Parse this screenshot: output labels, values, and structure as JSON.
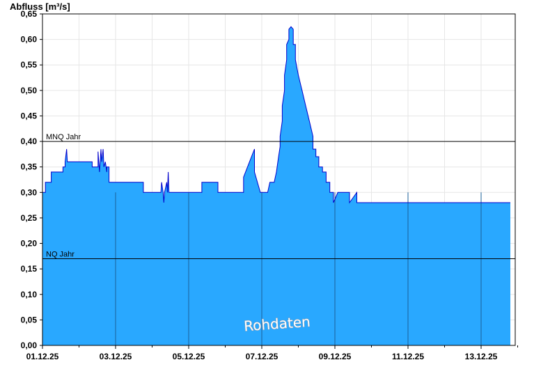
{
  "chart_data": {
    "type": "area",
    "ylabel": "Abfluss [m³/s]",
    "ylim": [
      0,
      0.65
    ],
    "y_ticks": [
      "0,00",
      "0,05",
      "0,10",
      "0,15",
      "0,20",
      "0,25",
      "0,30",
      "0,35",
      "0,40",
      "0,45",
      "0,50",
      "0,55",
      "0,60",
      "0,65"
    ],
    "x_ticks": [
      "01.12.25",
      "03.12.25",
      "05.12.25",
      "07.12.25",
      "09.12.25",
      "11.12.25",
      "13.12.25"
    ],
    "grid": true,
    "reference_lines": [
      {
        "label": "MNQ Jahr",
        "value": 0.4
      },
      {
        "label": "NQ Jahr",
        "value": 0.17
      }
    ],
    "watermark": "Rohdaten",
    "colors": {
      "fill": "#29a8ff",
      "line": "#0000cc",
      "grid": "#e6e6e6"
    },
    "series": [
      {
        "x": [
          0,
          0.08,
          0.08,
          0.24,
          0.24,
          0.56,
          0.56,
          0.62,
          0.62,
          0.66,
          0.68,
          0.68,
          1.36,
          1.36,
          1.52,
          1.52,
          1.56,
          1.6,
          1.62,
          1.66,
          1.68,
          1.72,
          1.76,
          1.76,
          1.82,
          1.82,
          1.88,
          1.88,
          2.76,
          2.76,
          3.24,
          3.26,
          3.3,
          3.32,
          3.34,
          3.4,
          3.42,
          3.44,
          3.46,
          4.0,
          4.0,
          4.36,
          4.36,
          4.8,
          4.8,
          5.04,
          5.06,
          5.1,
          5.14,
          5.16,
          5.2,
          5.2,
          5.5,
          5.5,
          5.8,
          5.8,
          5.96,
          5.96,
          6.04,
          6.1,
          6.16,
          6.22,
          6.28,
          6.34,
          6.4,
          6.46,
          6.5,
          6.5,
          6.56,
          6.56,
          6.62,
          6.62,
          6.68,
          6.68,
          6.74,
          6.74,
          6.8,
          6.8,
          6.86,
          6.86,
          6.92,
          6.92,
          7.0,
          7.1,
          7.2,
          7.3,
          7.4,
          7.4,
          7.48,
          7.48,
          7.56,
          7.56,
          7.66,
          7.66,
          7.76,
          7.76,
          7.86,
          7.86,
          7.96,
          7.96,
          8.08,
          8.08,
          8.22,
          8.22,
          8.4,
          8.4,
          8.6,
          8.6,
          8.88,
          8.88,
          9.1,
          9.1,
          9.4,
          9.4,
          10.0,
          10.0,
          10.52,
          10.52,
          10.58,
          10.58,
          11.0,
          11.0,
          11.52,
          11.54,
          11.56,
          11.58,
          11.6,
          11.62,
          11.62,
          12.8
        ],
        "values": [
          0.3,
          0.3,
          0.32,
          0.32,
          0.34,
          0.34,
          0.35,
          0.35,
          0.36,
          0.385,
          0.36,
          0.36,
          0.36,
          0.35,
          0.35,
          0.38,
          0.34,
          0.385,
          0.36,
          0.385,
          0.35,
          0.36,
          0.34,
          0.35,
          0.35,
          0.32,
          0.32,
          0.32,
          0.32,
          0.3,
          0.3,
          0.32,
          0.3,
          0.28,
          0.3,
          0.32,
          0.3,
          0.34,
          0.3,
          0.3,
          0.3,
          0.3,
          0.32,
          0.32,
          0.3,
          0.3,
          0.3,
          0.3,
          0.3,
          0.3,
          0.3,
          0.3,
          0.3,
          0.33,
          0.385,
          0.34,
          0.3,
          0.3,
          0.3,
          0.3,
          0.3,
          0.32,
          0.32,
          0.32,
          0.34,
          0.37,
          0.39,
          0.41,
          0.44,
          0.47,
          0.5,
          0.53,
          0.56,
          0.59,
          0.6,
          0.62,
          0.625,
          0.625,
          0.62,
          0.59,
          0.59,
          0.56,
          0.53,
          0.5,
          0.47,
          0.44,
          0.41,
          0.385,
          0.385,
          0.37,
          0.37,
          0.35,
          0.35,
          0.34,
          0.34,
          0.32,
          0.32,
          0.3,
          0.3,
          0.28,
          0.3,
          0.3,
          0.3,
          0.3,
          0.3,
          0.28,
          0.3,
          0.28,
          0.28,
          0.28,
          0.28,
          0.28,
          0.28,
          0.28,
          0.28,
          0.28,
          0.28,
          0.28,
          0.28,
          0.28,
          0.28,
          0.28,
          0.28,
          0.28,
          0.28,
          0.28,
          0.28,
          0.28,
          0.28,
          0.28
        ]
      }
    ]
  }
}
